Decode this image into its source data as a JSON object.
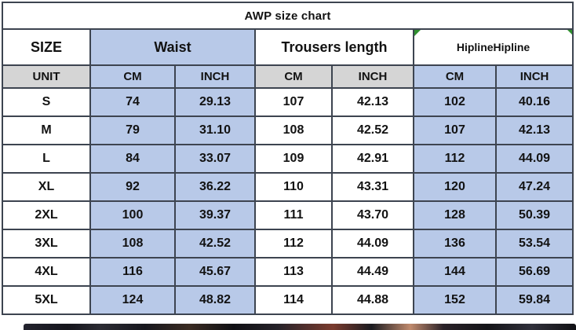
{
  "chart_data": {
    "type": "table",
    "title": "AWP size chart",
    "group_headers": [
      "SIZE",
      "Waist",
      "Trousers length",
      "HiplineHipline"
    ],
    "unit_row": [
      "UNIT",
      "CM",
      "INCH",
      "CM",
      "INCH",
      "CM",
      "INCH"
    ],
    "columns": [
      "SIZE",
      "Waist CM",
      "Waist INCH",
      "Trousers length CM",
      "Trousers length INCH",
      "Hipline CM",
      "Hipline INCH"
    ],
    "rows": [
      [
        "S",
        "74",
        "29.13",
        "107",
        "42.13",
        "102",
        "40.16"
      ],
      [
        "M",
        "79",
        "31.10",
        "108",
        "42.52",
        "107",
        "42.13"
      ],
      [
        "L",
        "84",
        "33.07",
        "109",
        "42.91",
        "112",
        "44.09"
      ],
      [
        "XL",
        "92",
        "36.22",
        "110",
        "43.31",
        "120",
        "47.24"
      ],
      [
        "2XL",
        "100",
        "39.37",
        "111",
        "43.70",
        "128",
        "50.39"
      ],
      [
        "3XL",
        "108",
        "42.52",
        "112",
        "44.09",
        "136",
        "53.54"
      ],
      [
        "4XL",
        "116",
        "45.67",
        "113",
        "44.49",
        "144",
        "56.69"
      ],
      [
        "5XL",
        "124",
        "48.82",
        "114",
        "44.88",
        "152",
        "59.84"
      ]
    ]
  },
  "style": {
    "colors": {
      "blue_cell": "#b8c9e8",
      "gray_cell": "#d5d5d5",
      "white_cell": "#ffffff",
      "border": "#3d4450",
      "title_text": "#201a4f",
      "group_header_text": "#241c4f",
      "body_text": "#121212",
      "comment_marker_green": "#2f8f2f"
    },
    "column_fill_pattern": [
      "white",
      "blue",
      "blue",
      "white",
      "white",
      "blue",
      "blue"
    ],
    "unit_fill_pattern": [
      "gray",
      "blue",
      "blue",
      "gray",
      "gray",
      "blue",
      "blue"
    ]
  }
}
